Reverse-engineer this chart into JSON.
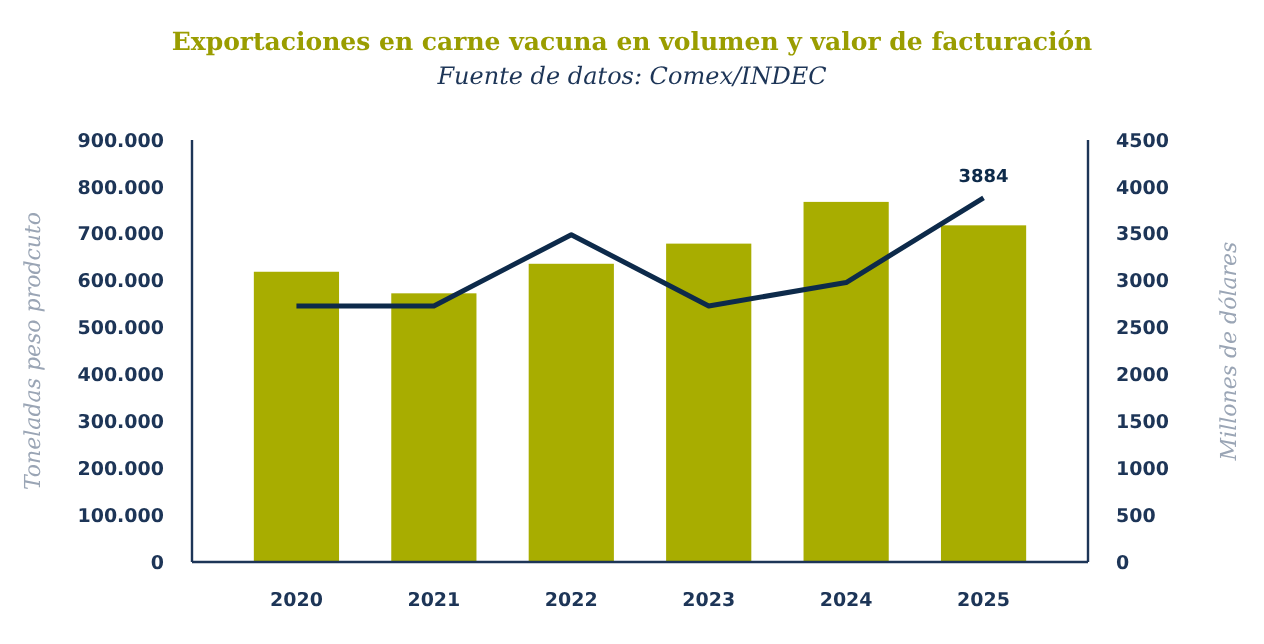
{
  "chart_data": {
    "type": "bar",
    "title": "Exportaciones en carne vacuna en volumen y valor de facturación",
    "subtitle": "Fuente de datos: Comex/INDEC",
    "ylabel": "Toneladas peso prodcuto",
    "y2label": "Millones de dólares",
    "categories": [
      "2020",
      "2021",
      "2022",
      "2023",
      "2024",
      "2025"
    ],
    "series": [
      {
        "color": "#a8ad00",
        "values": [
          619000,
          573000,
          636000,
          679000,
          768000,
          718000
        ]
      },
      {
        "type": "line",
        "axis": "y2",
        "color": "#0d2a4a",
        "values": [
          2730,
          2730,
          3490,
          2730,
          2980,
          3884
        ],
        "value_labels": [
          null,
          null,
          null,
          null,
          null,
          "3884"
        ]
      }
    ],
    "ylim": [
      0,
      900000
    ],
    "yticks": [
      {
        "value": 0,
        "label": "0"
      },
      {
        "value": 100000,
        "label": "100.000"
      },
      {
        "value": 200000,
        "label": "200.000"
      },
      {
        "value": 300000,
        "label": "300.000"
      },
      {
        "value": 400000,
        "label": "400.000"
      },
      {
        "value": 500000,
        "label": "500.000"
      },
      {
        "value": 600000,
        "label": "600.000"
      },
      {
        "value": 700000,
        "label": "700.000"
      },
      {
        "value": 800000,
        "label": "800.000"
      },
      {
        "value": 900000,
        "label": "900.000"
      }
    ],
    "y2lim": [
      0,
      4500
    ],
    "y2ticks": [
      0,
      500,
      1000,
      1500,
      2000,
      2500,
      3000,
      3500,
      4000,
      4500
    ],
    "grid": false
  }
}
